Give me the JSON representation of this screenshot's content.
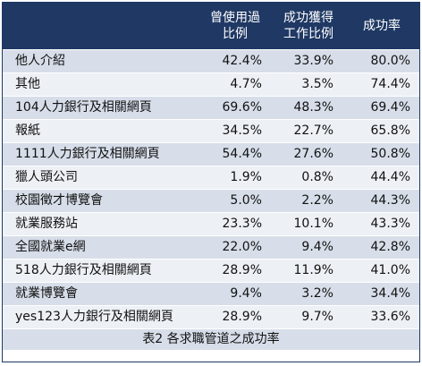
{
  "table": {
    "headers": [
      {
        "lines": [
          ""
        ]
      },
      {
        "lines": [
          "曾使用過",
          "比例"
        ]
      },
      {
        "lines": [
          "成功獲得",
          "工作比例"
        ]
      },
      {
        "lines": [
          "成功率"
        ]
      }
    ],
    "rows": [
      [
        "他人介紹",
        "42.4%",
        "33.9%",
        "80.0%"
      ],
      [
        "其他",
        "4.7%",
        "3.5%",
        "74.4%"
      ],
      [
        "104人力銀行及相關網頁",
        "69.6%",
        "48.3%",
        "69.4%"
      ],
      [
        "報紙",
        "34.5%",
        "22.7%",
        "65.8%"
      ],
      [
        "1111人力銀行及相關網頁",
        "54.4%",
        "27.6%",
        "50.8%"
      ],
      [
        "獵人頭公司",
        "1.9%",
        "0.8%",
        "44.4%"
      ],
      [
        "校園徵才博覽會",
        "5.0%",
        "2.2%",
        "44.3%"
      ],
      [
        "就業服務站",
        "23.3%",
        "10.1%",
        "43.3%"
      ],
      [
        "全國就業e網",
        "22.0%",
        "9.4%",
        "42.8%"
      ],
      [
        "518人力銀行及相關網頁",
        "28.9%",
        "11.9%",
        "41.0%"
      ],
      [
        "就業博覽會",
        "9.4%",
        "3.2%",
        "34.4%"
      ],
      [
        "yes123人力銀行及相關網頁",
        "28.9%",
        "9.7%",
        "33.6%"
      ]
    ],
    "caption": "表2 各求職管道之成功率"
  },
  "colors": {
    "header_bg": "#1f3864",
    "row_odd": "#d7dee9",
    "row_even": "#edf1f6"
  }
}
